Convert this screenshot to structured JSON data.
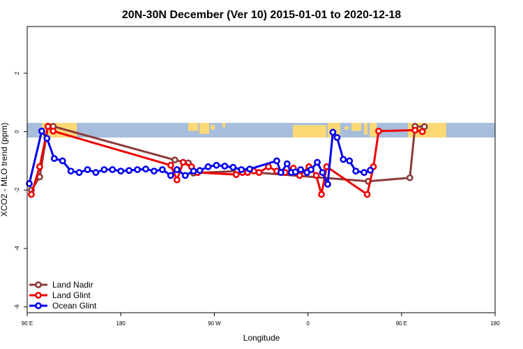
{
  "chart_data": {
    "type": "line",
    "title": "20N-30N December (Ver 10)   2015-01-01 to 2020-12-18",
    "xlabel": "Longitude",
    "ylabel": "XCO2 - MLO trend (ppm)",
    "xlim": [
      90,
      450
    ],
    "ylim": [
      -6.2,
      3.6
    ],
    "x_ticks": [
      {
        "value": 90,
        "label": "90 E"
      },
      {
        "value": 180,
        "label": "180"
      },
      {
        "value": 270,
        "label": "90 W"
      },
      {
        "value": 360,
        "label": "0"
      },
      {
        "value": 450,
        "label": "90 E"
      },
      {
        "value": 540,
        "label": "180"
      }
    ],
    "y_ticks": [
      {
        "value": 2,
        "label": "2"
      },
      {
        "value": 0,
        "label": "0"
      },
      {
        "value": -2,
        "label": "-2"
      },
      {
        "value": -4,
        "label": "-4"
      },
      {
        "value": -6,
        "label": "-6"
      }
    ],
    "map_band": {
      "lat_range": [
        20,
        30
      ],
      "y_range": [
        -0.2,
        0.3
      ],
      "ocean_color": "#a6bddb",
      "land_color": "#fdd976"
    },
    "legend_position": "bottom-left",
    "series": [
      {
        "name": "Land Nadir",
        "color": "#8b3a3a",
        "x": [
          94,
          102,
          110,
          115,
          232,
          245,
          250,
          292,
          418,
          458,
          463,
          472
        ],
        "y": [
          -2.0,
          -1.55,
          0.18,
          0.18,
          -0.97,
          -1.07,
          -1.42,
          -1.35,
          -1.7,
          -1.58,
          0.18,
          0.17
        ]
      },
      {
        "name": "Land Glint",
        "color": "#ee0000",
        "x": [
          94,
          102,
          110,
          115,
          228,
          234,
          240,
          248,
          254,
          291,
          297,
          302,
          308,
          313,
          322,
          330,
          338,
          346,
          352,
          361,
          368,
          373,
          378,
          417,
          423,
          428,
          463,
          470
        ],
        "y": [
          -2.15,
          -1.2,
          0.18,
          0.02,
          -1.15,
          -1.65,
          -1.05,
          -1.2,
          -1.4,
          -1.47,
          -1.4,
          -1.4,
          -1.35,
          -1.4,
          -1.2,
          -1.35,
          -1.4,
          -1.25,
          -1.5,
          -1.2,
          -1.5,
          -2.15,
          -1.2,
          -2.15,
          -1.2,
          0.02,
          0.05,
          0.0
        ]
      },
      {
        "name": "Ocean Glint",
        "color": "#0000ee",
        "x": [
          92,
          104,
          109,
          116,
          124,
          132,
          140,
          148,
          156,
          164,
          172,
          180,
          188,
          196,
          204,
          212,
          220,
          228,
          234,
          242,
          250,
          256,
          264,
          272,
          280,
          288,
          296,
          304,
          330,
          334,
          340,
          344,
          348,
          353,
          359,
          363,
          369,
          374,
          379,
          384,
          388,
          394,
          400,
          406,
          414,
          420
        ],
        "y": [
          -1.78,
          0.02,
          -0.23,
          -0.92,
          -1.0,
          -1.35,
          -1.4,
          -1.3,
          -1.4,
          -1.3,
          -1.3,
          -1.35,
          -1.33,
          -1.3,
          -1.28,
          -1.35,
          -1.3,
          -1.5,
          -1.3,
          -1.5,
          -1.35,
          -1.33,
          -1.2,
          -1.15,
          -1.18,
          -1.22,
          -1.3,
          -1.28,
          -1.0,
          -1.4,
          -1.1,
          -1.4,
          -1.38,
          -1.3,
          -1.4,
          -1.3,
          -1.05,
          -1.4,
          -1.8,
          -0.02,
          -0.2,
          -0.95,
          -1.0,
          -1.35,
          -1.4,
          -1.32
        ]
      }
    ]
  }
}
